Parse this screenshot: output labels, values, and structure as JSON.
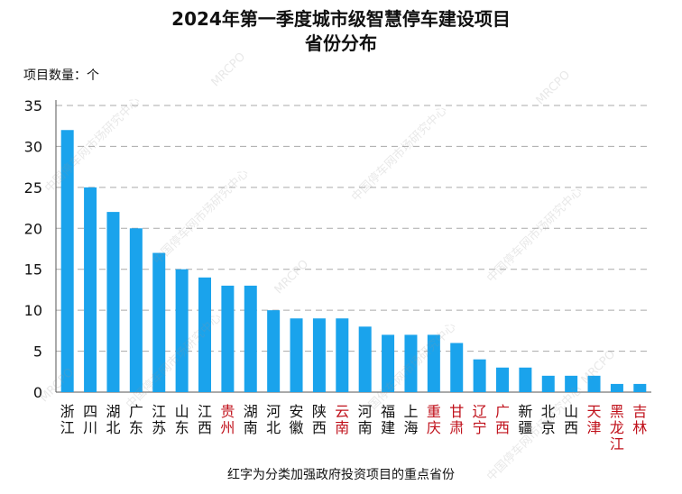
{
  "title_line1": "2024年第一季度城市级智慧停车建设项目",
  "title_line2": "省份分布",
  "unit_label": "项目数量：个",
  "footnote": "红字为分类加强政府投资项目的重点省份",
  "watermark_org": "中国停车网市场研究中心",
  "watermark_code": "MRCPO",
  "colors": {
    "bar": "#1aa3ec",
    "highlight_text": "#c0111b",
    "normal_text": "#111111",
    "grid": "#aaaaaa"
  },
  "chart_data": {
    "type": "bar",
    "categories": [
      "浙江",
      "四川",
      "湖北",
      "广东",
      "江苏",
      "山东",
      "江西",
      "贵州",
      "湖南",
      "河北",
      "安徽",
      "陕西",
      "云南",
      "河南",
      "福建",
      "上海",
      "重庆",
      "甘肃",
      "辽宁",
      "广西",
      "新疆",
      "北京",
      "山西",
      "天津",
      "黑龙江",
      "吉林"
    ],
    "values": [
      32,
      25,
      22,
      20,
      17,
      15,
      14,
      13,
      13,
      10,
      9,
      9,
      9,
      8,
      7,
      7,
      7,
      6,
      4,
      3,
      3,
      2,
      2,
      2,
      1,
      1
    ],
    "highlighted": [
      "贵州",
      "云南",
      "重庆",
      "甘肃",
      "辽宁",
      "广西",
      "天津",
      "黑龙江",
      "吉林"
    ],
    "ylim": [
      0,
      35
    ],
    "yticks": [
      0,
      5,
      10,
      15,
      20,
      25,
      30,
      35
    ],
    "grid": true
  }
}
